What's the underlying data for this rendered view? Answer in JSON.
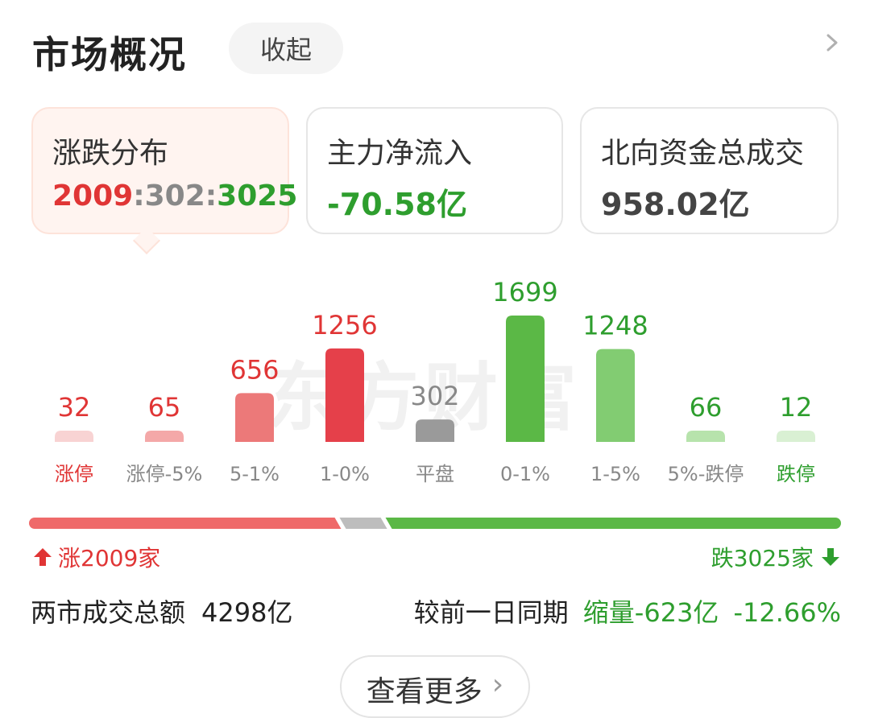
{
  "header": {
    "title": "市场概况",
    "collapse_label": "收起"
  },
  "cards": [
    {
      "label": "涨跌分布",
      "up": "2009",
      "sep1": ":",
      "flat": "302",
      "sep2": ":",
      "down": "3025"
    },
    {
      "label": "主力净流入",
      "value": "-70.58亿"
    },
    {
      "label": "北向资金总成交",
      "value": "958.02亿"
    }
  ],
  "watermark": "东方财富",
  "chart_data": {
    "type": "bar",
    "categories": [
      "涨停",
      "涨停-5%",
      "5-1%",
      "1-0%",
      "平盘",
      "0-1%",
      "1-5%",
      "5%-跌停",
      "跌停"
    ],
    "values": [
      32,
      65,
      656,
      1256,
      302,
      1699,
      1248,
      66,
      12
    ],
    "bar_colors": [
      "#f8d3d3",
      "#f4a8a8",
      "#ec7979",
      "#e5404a",
      "#9a9a9a",
      "#5bb846",
      "#82cc72",
      "#b7e3ac",
      "#d9f0d3"
    ],
    "label_colors": [
      "#e03535",
      "#888888",
      "#888888",
      "#888888",
      "#888888",
      "#888888",
      "#888888",
      "#888888",
      "#2e9e2e"
    ],
    "value_colors": [
      "#e03535",
      "#e03535",
      "#e03535",
      "#e03535",
      "#888888",
      "#2e9e2e",
      "#2e9e2e",
      "#2e9e2e",
      "#2e9e2e"
    ]
  },
  "breadth": {
    "up": 2009,
    "flat": 302,
    "down": 3025,
    "up_text": "涨2009家",
    "down_text": "跌3025家"
  },
  "summary": {
    "total_label": "两市成交总额",
    "total_value": "4298亿",
    "compare_label": "较前一日同期",
    "change_amount": "缩量-623亿",
    "change_pct": "-12.66%"
  },
  "more_button": {
    "label": "查看更多"
  },
  "colors": {
    "red": "#e03535",
    "green": "#2e9e2e",
    "gray": "#9a9a9a",
    "strip_red": "#ef6a6a",
    "strip_green": "#5bb846",
    "strip_gray": "#bdbdbd"
  }
}
